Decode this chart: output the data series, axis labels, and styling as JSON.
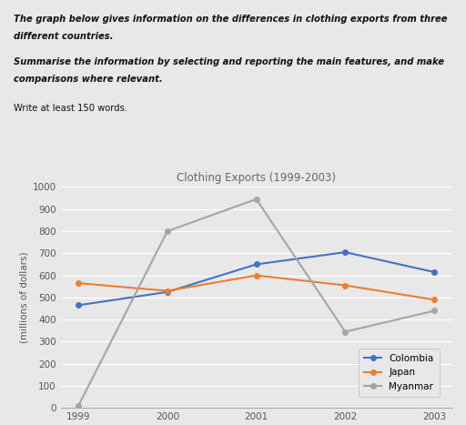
{
  "title": "Clothing Exports (1999-2003)",
  "ylabel": "(millions of dollars)",
  "years": [
    1999,
    2000,
    2001,
    2002,
    2003
  ],
  "colombia": [
    465,
    525,
    650,
    705,
    615
  ],
  "japan": [
    565,
    530,
    600,
    555,
    490
  ],
  "myanmar": [
    10,
    800,
    945,
    345,
    440
  ],
  "colombia_color": "#4472c4",
  "japan_color": "#ed7d31",
  "myanmar_color": "#a5a5a5",
  "ylim_min": 0,
  "ylim_max": 1000,
  "yticks": [
    0,
    100,
    200,
    300,
    400,
    500,
    600,
    700,
    800,
    900,
    1000
  ],
  "bg_color": "#e8e8e8",
  "plot_bg_color": "#e8e8e8",
  "grid_color": "#ffffff",
  "header1_bold_italic": "The graph below gives information on the differences in clothing exports from three",
  "header2_bold_italic": "different countries.",
  "header3_bold_italic": "Summarise the information by selecting and reporting the main features, and make",
  "header4_bold_italic": "comparisons where relevant.",
  "header5_normal": "Write at least 150 words.",
  "legend_labels": [
    "Colombia",
    "Japan",
    "Myanmar"
  ],
  "marker": "o",
  "linewidth": 1.5,
  "markersize": 4,
  "title_color": "#666666",
  "tick_color": "#555555",
  "ylabel_color": "#555555"
}
